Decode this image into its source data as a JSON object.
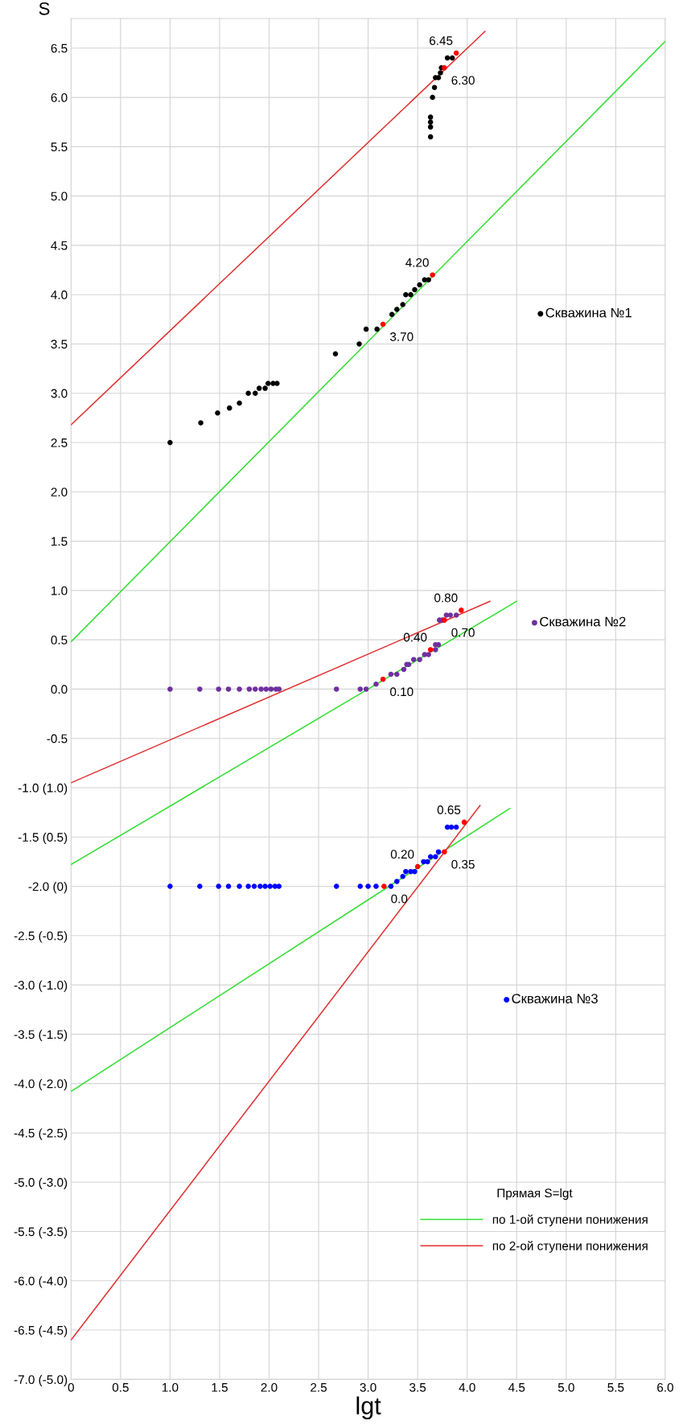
{
  "chart_data": {
    "type": "scatter",
    "xlabel": "lgt",
    "ylabel": "S",
    "legend_title": "Прямая S=lgt",
    "xlim": [
      0,
      6
    ],
    "ylim": [
      -7,
      6.8
    ],
    "y2lim": [
      -5,
      8.8
    ],
    "xticks": [
      {
        "value": 0,
        "label": "0"
      },
      0.5,
      {
        "value": 1,
        "label": "1.0"
      },
      1.5,
      {
        "value": 2,
        "label": "2.0"
      },
      2.5,
      {
        "value": 3,
        "label": "3.0"
      },
      3.5,
      {
        "value": 4,
        "label": "4.0"
      },
      4.5,
      {
        "value": 5,
        "label": "5.0"
      },
      5.5,
      {
        "value": 6,
        "label": "6.0"
      }
    ],
    "yticks": [
      {
        "value": -7,
        "label": "-7.0 (-5.0)"
      },
      {
        "value": -6.5,
        "label": "-6.5 (-4.5)"
      },
      {
        "value": -6,
        "label": "-6.0 (-4.0)"
      },
      {
        "value": -5.5,
        "label": "-5.5 (-3.5)"
      },
      {
        "value": -5,
        "label": "-5.0 (-3.0)"
      },
      {
        "value": -4.5,
        "label": "-4.5 (-2.5)"
      },
      {
        "value": -4,
        "label": "-4.0 (-2.0)"
      },
      {
        "value": -3.5,
        "label": "-3.5 (-1.5)"
      },
      {
        "value": -3,
        "label": "-3.0 (-1.0)"
      },
      {
        "value": -2.5,
        "label": "-2.5 (-0.5)"
      },
      {
        "value": -2,
        "label": "-2.0 (0)"
      },
      {
        "value": -1.5,
        "label": "-1.5 (0.5)"
      },
      {
        "value": -1,
        "label": "-1.0 (1.0)"
      },
      -0.5,
      {
        "value": 0,
        "label": "0.0"
      },
      0.5,
      {
        "value": 1,
        "label": "1.0"
      },
      1.5,
      {
        "value": 2,
        "label": "2.0"
      },
      2.5,
      {
        "value": 3,
        "label": "3.0"
      },
      3.5,
      {
        "value": 4,
        "label": "4.0"
      },
      4.5,
      {
        "value": 5,
        "label": "5.0"
      },
      5.5,
      {
        "value": 6,
        "label": "6.0"
      },
      6.5
    ],
    "grid": true,
    "legend": "bottom right",
    "marker": "circle",
    "series": [
      {
        "name": "Скважина №1",
        "color": "#000000",
        "x": [
          1.0,
          1.31,
          1.48,
          1.6,
          1.7,
          1.79,
          1.86,
          1.9,
          1.96,
          1.99,
          2.04,
          2.08,
          2.67,
          2.91,
          2.98,
          3.09,
          3.24,
          3.29,
          3.35,
          3.38,
          3.43,
          3.47,
          3.52,
          3.57,
          3.61,
          3.63,
          3.63,
          3.63,
          3.63,
          3.65,
          3.67,
          3.68,
          3.71,
          3.73,
          3.74,
          3.8,
          3.85
        ],
        "values": [
          2.5,
          2.7,
          2.8,
          2.85,
          2.9,
          3.0,
          3.0,
          3.05,
          3.05,
          3.1,
          3.1,
          3.1,
          3.4,
          3.5,
          3.65,
          3.65,
          3.8,
          3.85,
          3.9,
          4.0,
          4.0,
          4.05,
          4.1,
          4.15,
          4.15,
          5.6,
          5.7,
          5.75,
          5.8,
          6.0,
          6.1,
          6.2,
          6.2,
          6.25,
          6.3,
          6.4,
          6.4
        ]
      },
      {
        "name": "Скважина №2",
        "color": "#7030a0",
        "x": [
          1.0,
          1.3,
          1.49,
          1.59,
          1.7,
          1.8,
          1.86,
          1.92,
          1.97,
          2.02,
          2.07,
          2.1,
          2.68,
          2.92,
          2.98,
          3.08,
          3.23,
          3.29,
          3.36,
          3.39,
          3.41,
          3.46,
          3.52,
          3.57,
          3.61,
          3.68,
          3.68,
          3.71,
          3.72,
          3.75,
          3.79,
          3.83,
          3.89
        ],
        "values": [
          0.0,
          0.0,
          0.0,
          0.0,
          0.0,
          0.0,
          0.0,
          0.0,
          0.0,
          0.0,
          0.0,
          0.0,
          0.0,
          0.0,
          0.0,
          0.05,
          0.15,
          0.15,
          0.2,
          0.25,
          0.25,
          0.3,
          0.3,
          0.35,
          0.35,
          0.4,
          0.45,
          0.45,
          0.7,
          0.7,
          0.75,
          0.75,
          0.75
        ]
      },
      {
        "name": "Скважина №3",
        "axis": "y2",
        "color": "#0000ff",
        "x": [
          1.0,
          1.3,
          1.49,
          1.59,
          1.7,
          1.79,
          1.85,
          1.91,
          1.96,
          2.01,
          2.06,
          2.1,
          2.68,
          2.92,
          3.0,
          3.08,
          3.23,
          3.29,
          3.35,
          3.38,
          3.43,
          3.47,
          3.56,
          3.6,
          3.63,
          3.68,
          3.71,
          3.8,
          3.84,
          3.89
        ],
        "values": [
          0.0,
          0.0,
          0.0,
          0.0,
          0.0,
          0.0,
          0.0,
          0.0,
          0.0,
          0.0,
          0.0,
          0.0,
          0.0,
          0.0,
          0.0,
          0.0,
          0.0,
          0.05,
          0.1,
          0.15,
          0.15,
          0.15,
          0.25,
          0.25,
          0.3,
          0.3,
          0.35,
          0.6,
          0.6,
          0.6
        ]
      },
      {
        "color": "#ff0000",
        "x": [
          3.15,
          3.65,
          3.77,
          3.89,
          3.15,
          3.63,
          3.77,
          3.94
        ],
        "values": [
          3.7,
          4.2,
          6.3,
          6.45,
          0.1,
          0.4,
          0.7,
          0.8
        ],
        "value_labels": [
          "3.70",
          "4.20",
          "6.30",
          "6.45",
          "0.10",
          "0.40",
          "0.70",
          "0.80"
        ]
      },
      {
        "color": "#ff0000",
        "axis": "y2",
        "x": [
          3.16,
          3.5,
          3.77,
          3.97
        ],
        "values": [
          0.0,
          0.2,
          0.35,
          0.65
        ],
        "value_labels": [
          "0.0",
          "0.20",
          "0.35",
          "0.65"
        ]
      },
      {
        "type": "line",
        "marker": "none",
        "name": "по 1-ой ступени понижения",
        "color": "#33dd33",
        "x": [
          0,
          6
        ],
        "values": [
          0.48,
          6.57
        ]
      },
      {
        "type": "line",
        "marker": "none",
        "name": "по 2-ой ступени понижения",
        "color": "#e03030",
        "x": [
          0,
          4.18
        ],
        "values": [
          2.68,
          6.67
        ]
      },
      {
        "type": "line",
        "marker": "none",
        "color": "#33dd33",
        "x": [
          0,
          4.5
        ],
        "values": [
          -1.78,
          0.89
        ]
      },
      {
        "type": "line",
        "marker": "none",
        "color": "#e03030",
        "x": [
          0,
          4.23
        ],
        "values": [
          -0.95,
          0.89
        ]
      },
      {
        "type": "line",
        "marker": "none",
        "axis": "y2",
        "color": "#33dd33",
        "x": [
          0,
          4.43
        ],
        "values": [
          -2.08,
          0.79
        ]
      },
      {
        "type": "line",
        "marker": "none",
        "axis": "y2",
        "color": "#e03030",
        "x": [
          0,
          4.13
        ],
        "values": [
          -4.6,
          0.82
        ]
      }
    ]
  }
}
